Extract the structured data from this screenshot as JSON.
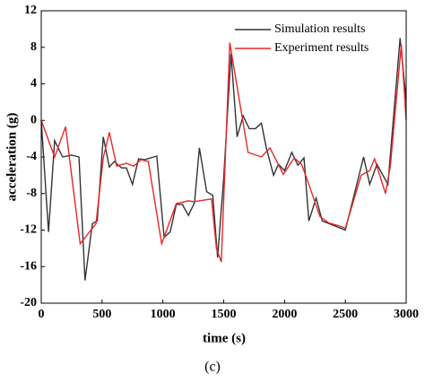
{
  "chart_data": {
    "type": "line",
    "caption": "(c)",
    "x_label": "time (s)",
    "y_label": "acceleration (g)",
    "xlim": [
      0,
      3000
    ],
    "xticks": [
      0,
      500,
      1000,
      1500,
      2000,
      2500,
      3000
    ],
    "ylim": [
      -20,
      12
    ],
    "yticks": [
      -20,
      -16,
      -12,
      -8,
      -4,
      0,
      4,
      8,
      12
    ],
    "legend": "upper right",
    "series": [
      {
        "name": "Simulation results",
        "color": "#333333",
        "x": [
          0,
          60,
          110,
          175,
          250,
          310,
          360,
          420,
          460,
          510,
          560,
          600,
          660,
          700,
          750,
          800,
          850,
          950,
          1010,
          1060,
          1110,
          1160,
          1210,
          1260,
          1300,
          1360,
          1410,
          1450,
          1500,
          1560,
          1610,
          1660,
          1710,
          1760,
          1810,
          1850,
          1910,
          1950,
          2000,
          2060,
          2110,
          2160,
          2200,
          2260,
          2310,
          2500,
          2650,
          2700,
          2760,
          2850,
          2950,
          3000
        ],
        "values": [
          0,
          -12.2,
          -2.2,
          -4,
          -3.8,
          -4,
          -17.5,
          -11.3,
          -11,
          -1.8,
          -5.1,
          -4.5,
          -5.2,
          -5.2,
          -7,
          -4.2,
          -4.3,
          -3.9,
          -12.8,
          -12.2,
          -9.2,
          -9.2,
          -10.4,
          -9,
          -3,
          -7.8,
          -8.2,
          -15,
          -6.3,
          7.3,
          -1.8,
          0.5,
          -0.9,
          -0.9,
          -0.3,
          -3,
          -6,
          -4.8,
          -5.5,
          -3.5,
          -4.9,
          -4.1,
          -11,
          -8.5,
          -11,
          -12,
          -4,
          -7,
          -4.8,
          -7,
          9,
          2.2
        ]
      },
      {
        "name": "Experiment results",
        "color": "#e8262a",
        "x": [
          0,
          110,
          200,
          320,
          450,
          510,
          560,
          620,
          700,
          760,
          820,
          880,
          990,
          1110,
          1210,
          1250,
          1400,
          1440,
          1480,
          1550,
          1700,
          1810,
          1880,
          1990,
          2080,
          2140,
          2200,
          2290,
          2360,
          2440,
          2500,
          2630,
          2700,
          2740,
          2830,
          2870,
          2960,
          3000
        ],
        "values": [
          0,
          -4,
          -0.7,
          -13.5,
          -11.3,
          -4.1,
          -1.3,
          -5,
          -4.7,
          -5,
          -4.3,
          -4.5,
          -13.5,
          -9.1,
          -8.8,
          -8.9,
          -8.6,
          -14,
          -15.5,
          8.5,
          -3.5,
          -4,
          -3,
          -5.9,
          -4.1,
          -4.8,
          -7,
          -10.5,
          -11.2,
          -11.5,
          -11.8,
          -6,
          -5.5,
          -4.2,
          -8,
          -5,
          8.3,
          0
        ]
      }
    ]
  }
}
